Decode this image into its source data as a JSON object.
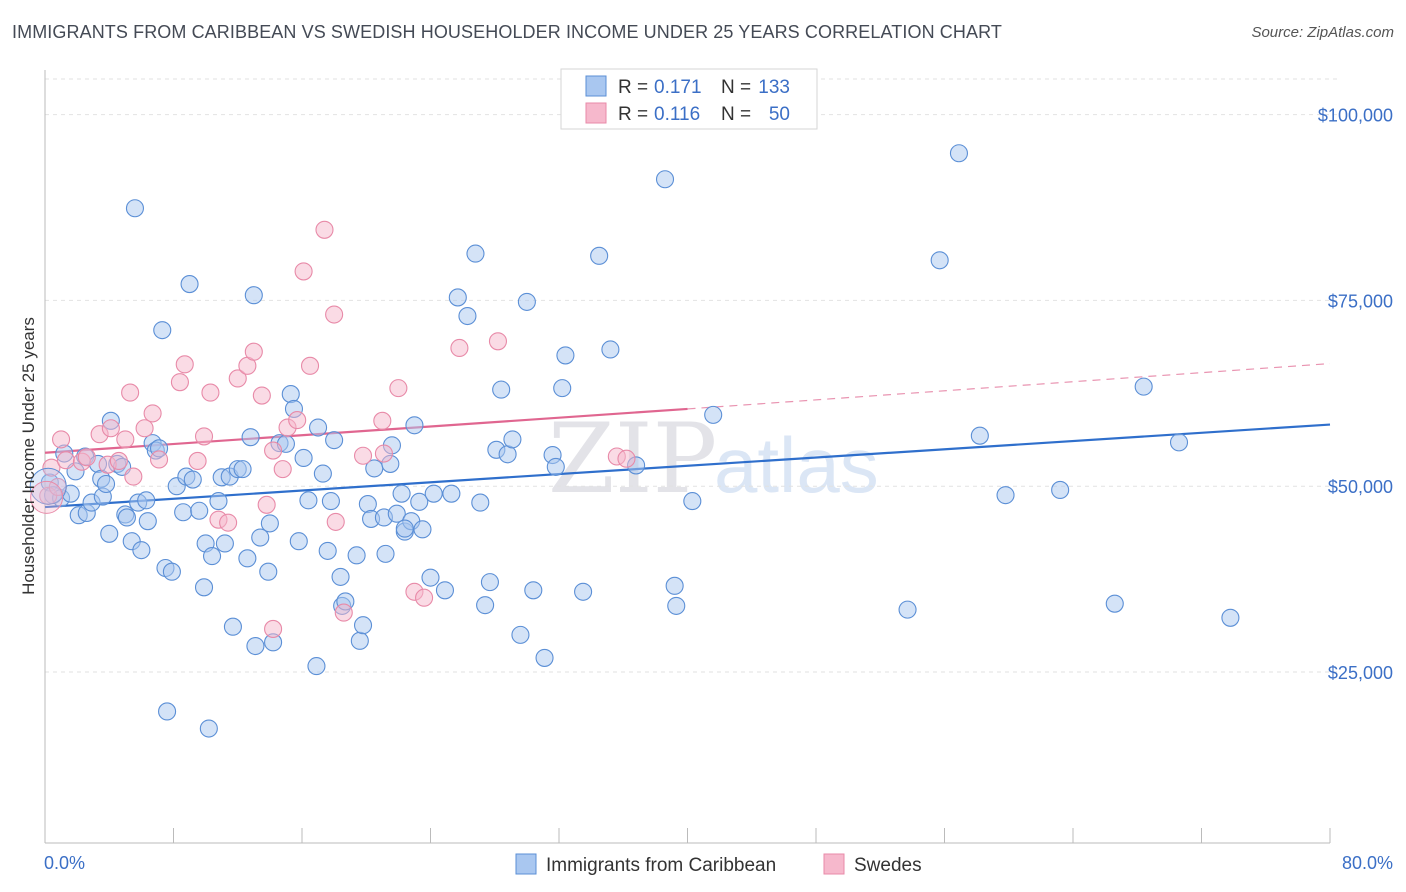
{
  "header": {
    "title": "IMMIGRANTS FROM CARIBBEAN VS SWEDISH HOUSEHOLDER INCOME UNDER 25 YEARS CORRELATION CHART",
    "source": "Source: ZipAtlas.com"
  },
  "watermark": {
    "zip": "ZIP",
    "atlas": "atlas"
  },
  "legend": {
    "rows": [
      {
        "r_label": "R =",
        "r_value": "0.171",
        "n_label": "N =",
        "n_value": "133",
        "color": "#a9c7f0"
      },
      {
        "r_label": "R =",
        "r_value": "0.116",
        "n_label": "N =",
        "n_value": "50",
        "color": "#f6b8cc"
      }
    ]
  },
  "bottom_legend": {
    "items": [
      {
        "label": "Immigrants from Caribbean",
        "color": "#a9c7f0"
      },
      {
        "label": "Swedes",
        "color": "#f6b8cc"
      }
    ]
  },
  "chart_data": {
    "type": "scatter",
    "xlabel": "",
    "ylabel": "Householder Income Under 25 years",
    "xlim": [
      0,
      80
    ],
    "ylim": [
      2000,
      106000
    ],
    "x_tick_labels": [
      "0.0%",
      "80.0%"
    ],
    "y_ticks": [
      25000,
      50000,
      75000,
      100000
    ],
    "y_tick_labels": [
      "$25,000",
      "$50,000",
      "$75,000",
      "$100,000"
    ],
    "grid": true,
    "legend_position": "top-center",
    "series": [
      {
        "name": "Immigrants from Caribbean",
        "color": "#5b8fd6",
        "fill": "#a9c7f0",
        "trend": {
          "x": [
            0,
            80
          ],
          "y": [
            47200,
            58300
          ],
          "color": "#2f6fcc"
        },
        "points": [
          [
            0.3,
            50500
          ],
          [
            0.5,
            48800
          ],
          [
            1.0,
            48400
          ],
          [
            1.2,
            54400
          ],
          [
            1.6,
            49000
          ],
          [
            1.9,
            52000
          ],
          [
            2.1,
            46100
          ],
          [
            2.5,
            54000
          ],
          [
            2.6,
            46400
          ],
          [
            2.9,
            47800
          ],
          [
            3.3,
            53000
          ],
          [
            3.5,
            51000
          ],
          [
            3.6,
            48600
          ],
          [
            3.8,
            50300
          ],
          [
            4.0,
            43600
          ],
          [
            4.1,
            58800
          ],
          [
            4.5,
            53000
          ],
          [
            4.8,
            52600
          ],
          [
            5.0,
            46200
          ],
          [
            5.1,
            45800
          ],
          [
            5.4,
            42600
          ],
          [
            5.6,
            87400
          ],
          [
            5.8,
            47800
          ],
          [
            6.0,
            41400
          ],
          [
            6.3,
            48100
          ],
          [
            6.4,
            45300
          ],
          [
            6.7,
            55800
          ],
          [
            6.9,
            54800
          ],
          [
            7.1,
            55100
          ],
          [
            7.3,
            71000
          ],
          [
            7.5,
            39000
          ],
          [
            7.6,
            19700
          ],
          [
            7.9,
            38500
          ],
          [
            8.2,
            50000
          ],
          [
            8.6,
            46500
          ],
          [
            8.8,
            51300
          ],
          [
            9.0,
            77200
          ],
          [
            9.2,
            50900
          ],
          [
            9.6,
            46700
          ],
          [
            9.9,
            36400
          ],
          [
            10.0,
            42300
          ],
          [
            10.2,
            17400
          ],
          [
            10.4,
            40600
          ],
          [
            10.8,
            48000
          ],
          [
            11.0,
            51200
          ],
          [
            11.2,
            42300
          ],
          [
            11.5,
            51300
          ],
          [
            11.7,
            31100
          ],
          [
            12.0,
            52300
          ],
          [
            12.3,
            52300
          ],
          [
            12.6,
            40300
          ],
          [
            12.8,
            56600
          ],
          [
            13.0,
            75700
          ],
          [
            13.1,
            28500
          ],
          [
            13.4,
            43100
          ],
          [
            13.9,
            38500
          ],
          [
            14.0,
            45000
          ],
          [
            14.2,
            29000
          ],
          [
            14.6,
            55800
          ],
          [
            15.0,
            55700
          ],
          [
            15.3,
            62400
          ],
          [
            15.5,
            60400
          ],
          [
            15.8,
            42600
          ],
          [
            16.1,
            53800
          ],
          [
            16.4,
            48100
          ],
          [
            16.9,
            25800
          ],
          [
            17.0,
            57900
          ],
          [
            17.3,
            51700
          ],
          [
            17.6,
            41300
          ],
          [
            17.8,
            48000
          ],
          [
            18.0,
            56200
          ],
          [
            18.4,
            37800
          ],
          [
            18.5,
            33900
          ],
          [
            18.7,
            34500
          ],
          [
            19.4,
            40700
          ],
          [
            19.6,
            29200
          ],
          [
            19.8,
            31300
          ],
          [
            20.1,
            47600
          ],
          [
            20.3,
            45600
          ],
          [
            20.5,
            52400
          ],
          [
            21.1,
            45800
          ],
          [
            21.2,
            40900
          ],
          [
            21.5,
            53000
          ],
          [
            21.6,
            55500
          ],
          [
            21.9,
            46300
          ],
          [
            22.2,
            49000
          ],
          [
            22.4,
            43900
          ],
          [
            22.8,
            45300
          ],
          [
            23.0,
            58200
          ],
          [
            23.3,
            47900
          ],
          [
            23.5,
            44200
          ],
          [
            24.0,
            37700
          ],
          [
            24.2,
            49000
          ],
          [
            24.9,
            36000
          ],
          [
            25.3,
            49000
          ],
          [
            25.7,
            75400
          ],
          [
            26.3,
            72900
          ],
          [
            26.8,
            81300
          ],
          [
            27.1,
            47800
          ],
          [
            27.4,
            34000
          ],
          [
            27.7,
            37100
          ],
          [
            28.1,
            54900
          ],
          [
            28.4,
            63000
          ],
          [
            28.8,
            54300
          ],
          [
            29.1,
            56300
          ],
          [
            29.6,
            30000
          ],
          [
            30.0,
            74800
          ],
          [
            30.4,
            36000
          ],
          [
            31.1,
            26900
          ],
          [
            31.6,
            54200
          ],
          [
            31.8,
            52600
          ],
          [
            32.2,
            63200
          ],
          [
            32.4,
            67600
          ],
          [
            33.5,
            35800
          ],
          [
            34.5,
            81000
          ],
          [
            35.2,
            68400
          ],
          [
            36.8,
            52800
          ],
          [
            38.6,
            91300
          ],
          [
            39.2,
            36600
          ],
          [
            39.3,
            33900
          ],
          [
            40.3,
            48000
          ],
          [
            41.6,
            59600
          ],
          [
            53.7,
            33400
          ],
          [
            55.7,
            80400
          ],
          [
            56.9,
            94800
          ],
          [
            58.2,
            56800
          ],
          [
            59.8,
            48800
          ],
          [
            63.2,
            49500
          ],
          [
            66.6,
            34200
          ],
          [
            68.4,
            63400
          ],
          [
            70.6,
            55900
          ],
          [
            73.8,
            32300
          ],
          [
            22.4,
            44300
          ]
        ]
      },
      {
        "name": "Swedes",
        "color": "#e88aa8",
        "fill": "#f6b8cc",
        "trend": {
          "x": [
            0,
            40
          ],
          "y": [
            54500,
            60400
          ],
          "color": "#e06690",
          "dashed_extension": {
            "x": [
              40,
              80
            ],
            "y": [
              60400,
              66500
            ]
          }
        },
        "points": [
          [
            0.2,
            48700
          ],
          [
            0.4,
            52500
          ],
          [
            0.8,
            49900
          ],
          [
            1.0,
            56300
          ],
          [
            1.3,
            53500
          ],
          [
            2.3,
            53300
          ],
          [
            2.6,
            53900
          ],
          [
            3.4,
            57000
          ],
          [
            3.9,
            52900
          ],
          [
            4.1,
            57800
          ],
          [
            4.6,
            53400
          ],
          [
            5.0,
            56300
          ],
          [
            5.3,
            62600
          ],
          [
            5.5,
            51300
          ],
          [
            6.2,
            57800
          ],
          [
            6.7,
            59800
          ],
          [
            7.1,
            53600
          ],
          [
            8.4,
            64000
          ],
          [
            8.7,
            66400
          ],
          [
            9.5,
            53400
          ],
          [
            9.9,
            56700
          ],
          [
            10.3,
            62600
          ],
          [
            10.8,
            45500
          ],
          [
            11.4,
            45100
          ],
          [
            12.0,
            64500
          ],
          [
            12.6,
            66200
          ],
          [
            13.0,
            68100
          ],
          [
            13.5,
            62200
          ],
          [
            13.8,
            47500
          ],
          [
            14.2,
            54800
          ],
          [
            14.8,
            52300
          ],
          [
            15.1,
            57900
          ],
          [
            15.7,
            58900
          ],
          [
            16.1,
            78900
          ],
          [
            16.5,
            66200
          ],
          [
            17.4,
            84500
          ],
          [
            18.0,
            73100
          ],
          [
            18.6,
            33000
          ],
          [
            19.8,
            54100
          ],
          [
            21.1,
            54400
          ],
          [
            22.0,
            63200
          ],
          [
            23.0,
            35800
          ],
          [
            23.6,
            35000
          ],
          [
            25.8,
            68600
          ],
          [
            28.2,
            69500
          ],
          [
            35.6,
            54000
          ],
          [
            36.2,
            53700
          ],
          [
            14.2,
            30800
          ],
          [
            21.0,
            58800
          ],
          [
            18.1,
            45200
          ]
        ]
      }
    ]
  }
}
